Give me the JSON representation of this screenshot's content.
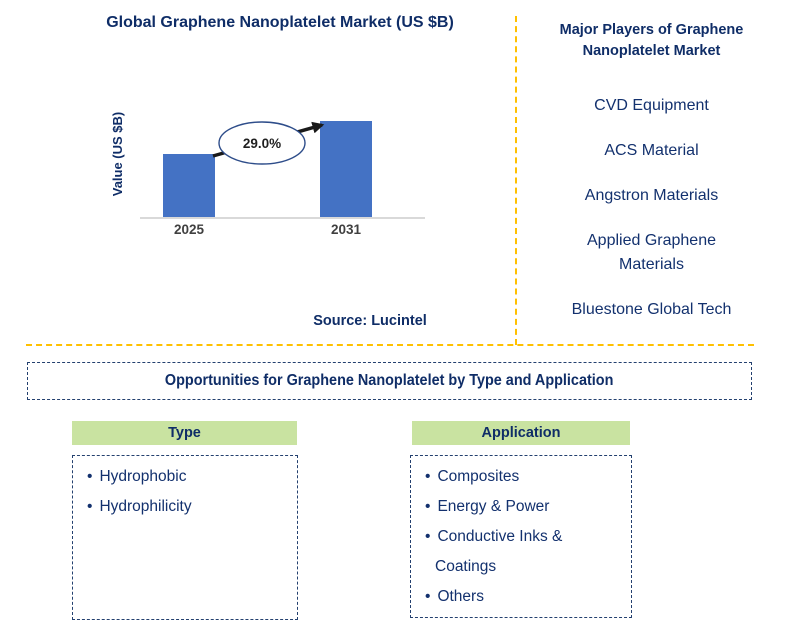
{
  "slide": {
    "chart": {
      "title": "Global Graphene Nanoplatelet Market (US $B)",
      "y_axis_label": "Value (US $B)",
      "source": "Source: Lucintel"
    },
    "players_panel": {
      "title": "Major Players of Graphene Nanoplatelet Market",
      "items": [
        "CVD Equipment",
        "ACS Material",
        "Angstron Materials",
        "Applied Graphene Materials",
        "Bluestone Global Tech"
      ]
    },
    "opportunities": {
      "title": "Opportunities for Graphene Nanoplatelet by Type and Application"
    },
    "type_section": {
      "header": "Type",
      "items": [
        "Hydrophobic",
        "Hydrophilicity"
      ]
    },
    "application_section": {
      "header": "Application",
      "items": [
        "Composites",
        "Energy & Power",
        "Conductive Inks & Coatings",
        "Others"
      ]
    }
  },
  "chart_data": {
    "type": "bar",
    "title": "Global Graphene Nanoplatelet Market (US $B)",
    "categories": [
      "2025",
      "2031"
    ],
    "values_relative": [
      0.66,
      1.0
    ],
    "values_axis_labeled": false,
    "annotation": "29.0%",
    "ylabel": "Value (US $B)",
    "xlabel": "",
    "grid": false,
    "legend": false,
    "bar_color": "#4472c4",
    "source": "Source: Lucintel"
  },
  "colors": {
    "navy_text": "#0f2d67",
    "bar_blue": "#4472c4",
    "divider_gold": "#ffc000",
    "header_green": "#c9e3a1",
    "axis_line_gray": "#d9d9d9",
    "tick_gray": "#404040"
  }
}
